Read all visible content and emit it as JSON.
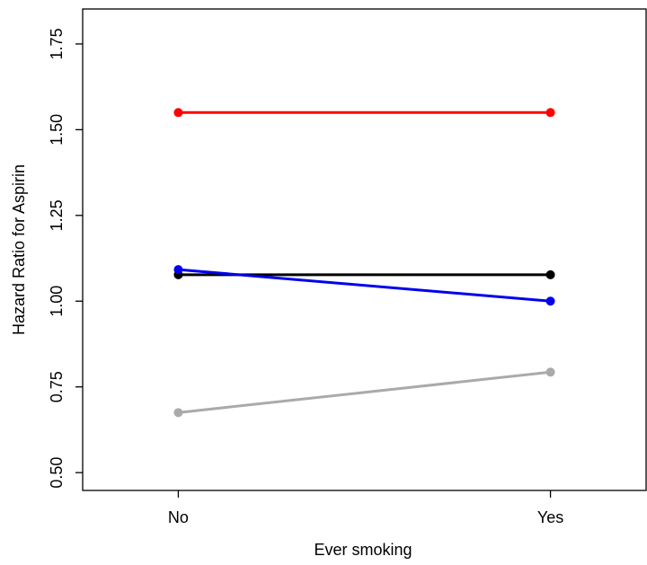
{
  "chart_data": {
    "type": "line",
    "x_label": "Ever smoking",
    "y_label": "Hazard Ratio for Aspirin",
    "categories": [
      "No",
      "Yes"
    ],
    "series": [
      {
        "color": "#ff0000",
        "values": [
          1.55,
          1.55
        ]
      },
      {
        "color": "#000000",
        "values": [
          1.077,
          1.077
        ]
      },
      {
        "color": "#0000ee",
        "values": [
          1.092,
          1.0
        ]
      },
      {
        "color": "#aaaaaa",
        "values": [
          0.675,
          0.793
        ]
      }
    ],
    "ylim": [
      0.448,
      1.852
    ],
    "yticks": [
      {
        "value": 0.5,
        "label": "0.50"
      },
      {
        "value": 0.75,
        "label": "0.75"
      },
      {
        "value": 1.0,
        "label": "1.00"
      },
      {
        "value": 1.25,
        "label": "1.25"
      },
      {
        "value": 1.5,
        "label": "1.50"
      },
      {
        "value": 1.75,
        "label": "1.75"
      }
    ]
  }
}
